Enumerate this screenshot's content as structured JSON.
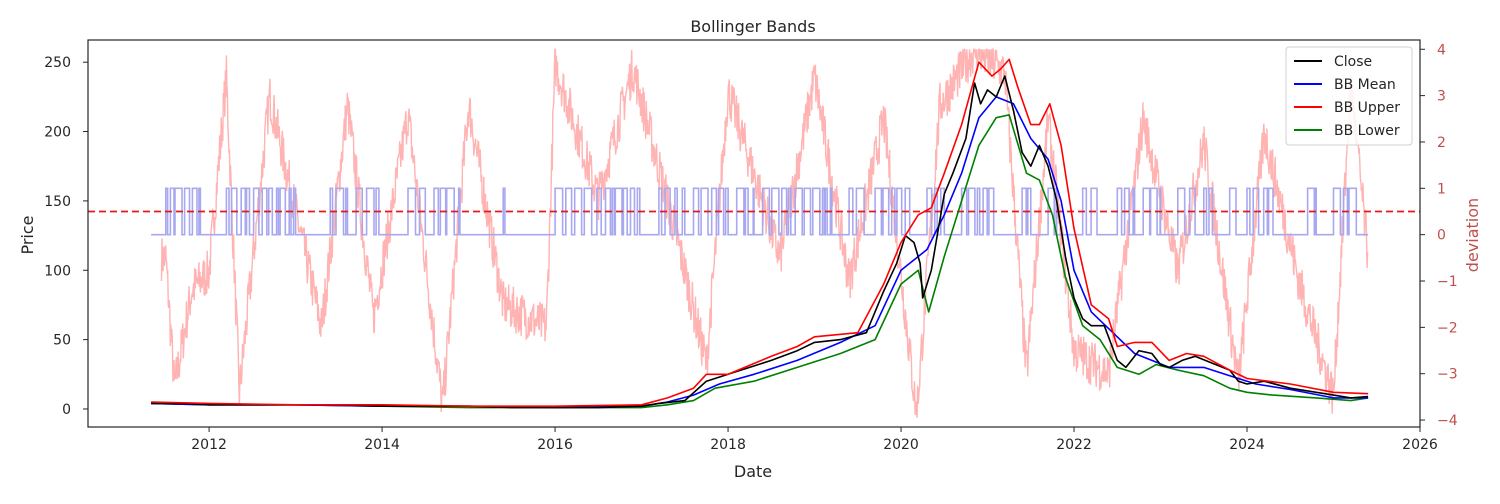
{
  "chart_data": {
    "type": "line",
    "title": "Bollinger Bands",
    "xlabel": "Date",
    "ylabel": "Price",
    "y2label": "deviation",
    "xlim": [
      2010.6,
      2026.0
    ],
    "ylim": [
      -13,
      266
    ],
    "y2lim": [
      -4.15,
      4.2
    ],
    "x_ticks": [
      "2012",
      "2014",
      "2016",
      "2018",
      "2020",
      "2022",
      "2024",
      "2026"
    ],
    "y_ticks": [
      "0",
      "50",
      "100",
      "150",
      "200",
      "250"
    ],
    "y2_ticks": [
      "−4",
      "−3",
      "−2",
      "−1",
      "0",
      "1",
      "2",
      "3",
      "4"
    ],
    "threshold": {
      "value": 0.5,
      "color": "#e41a1c",
      "style": "dashed"
    },
    "legend": {
      "position": "top-right",
      "entries": [
        "Close",
        "BB Mean",
        "BB Upper",
        "BB Lower"
      ]
    },
    "colors": {
      "close": "#000000",
      "bb_mean": "#0000ff",
      "bb_upper": "#ff0000",
      "bb_lower": "#008000",
      "deviation": "#ffb3b3",
      "signal": "#a8a8f0",
      "threshold": "#e41a1c",
      "y2_tick": "#c0504d"
    },
    "series": [
      {
        "name": "Close",
        "axis": "left",
        "x": [
          2011.33,
          2011.7,
          2012.0,
          2012.5,
          2013.0,
          2013.5,
          2014.0,
          2014.5,
          2015.0,
          2015.5,
          2016.0,
          2016.5,
          2017.0,
          2017.2,
          2017.5,
          2017.75,
          2018.0,
          2018.5,
          2018.8,
          2019.0,
          2019.3,
          2019.6,
          2019.8,
          2019.95,
          2020.05,
          2020.15,
          2020.22,
          2020.25,
          2020.35,
          2020.5,
          2020.6,
          2020.75,
          2020.85,
          2020.92,
          2021.0,
          2021.1,
          2021.2,
          2021.3,
          2021.4,
          2021.5,
          2021.6,
          2021.7,
          2021.8,
          2021.9,
          2022.0,
          2022.1,
          2022.2,
          2022.35,
          2022.5,
          2022.6,
          2022.75,
          2022.9,
          2023.0,
          2023.1,
          2023.25,
          2023.4,
          2023.6,
          2023.8,
          2023.9,
          2024.0,
          2024.2,
          2024.5,
          2024.8,
          2025.0,
          2025.2,
          2025.4
        ],
        "y": [
          4,
          4,
          3,
          3,
          3,
          3,
          2,
          2,
          2,
          1,
          1,
          1,
          2,
          4,
          6,
          20,
          25,
          35,
          42,
          48,
          50,
          55,
          85,
          105,
          125,
          120,
          105,
          80,
          100,
          155,
          170,
          195,
          235,
          220,
          230,
          225,
          240,
          215,
          185,
          175,
          190,
          175,
          150,
          110,
          80,
          65,
          60,
          60,
          35,
          30,
          42,
          40,
          32,
          30,
          35,
          38,
          33,
          28,
          20,
          18,
          20,
          15,
          12,
          10,
          8,
          9
        ]
      },
      {
        "name": "BB Mean",
        "axis": "left",
        "x": [
          2011.33,
          2012.0,
          2013.0,
          2014.0,
          2015.0,
          2016.0,
          2017.0,
          2017.3,
          2017.6,
          2017.9,
          2018.3,
          2018.8,
          2019.3,
          2019.7,
          2020.0,
          2020.3,
          2020.5,
          2020.7,
          2020.9,
          2021.1,
          2021.3,
          2021.5,
          2021.7,
          2021.85,
          2022.0,
          2022.2,
          2022.45,
          2022.7,
          2022.9,
          2023.1,
          2023.5,
          2023.8,
          2024.1,
          2024.5,
          2025.0,
          2025.4
        ],
        "y": [
          4,
          3,
          3,
          2,
          2,
          1,
          2,
          5,
          10,
          18,
          25,
          35,
          48,
          60,
          100,
          115,
          140,
          170,
          210,
          225,
          220,
          195,
          180,
          150,
          100,
          70,
          55,
          40,
          35,
          30,
          30,
          24,
          18,
          14,
          8,
          8
        ]
      },
      {
        "name": "BB Upper",
        "axis": "left",
        "x": [
          2011.33,
          2012.0,
          2013.0,
          2014.0,
          2015.0,
          2016.0,
          2017.0,
          2017.3,
          2017.6,
          2017.75,
          2018.0,
          2018.5,
          2018.8,
          2019.0,
          2019.5,
          2019.8,
          2020.0,
          2020.2,
          2020.35,
          2020.5,
          2020.7,
          2020.9,
          2021.05,
          2021.15,
          2021.25,
          2021.35,
          2021.5,
          2021.6,
          2021.72,
          2021.85,
          2022.0,
          2022.2,
          2022.4,
          2022.5,
          2022.7,
          2022.9,
          2023.1,
          2023.3,
          2023.5,
          2023.8,
          2024.0,
          2024.5,
          2025.0,
          2025.4
        ],
        "y": [
          5,
          4,
          3,
          3,
          2,
          2,
          3,
          8,
          15,
          25,
          25,
          38,
          45,
          52,
          55,
          90,
          120,
          140,
          145,
          170,
          205,
          250,
          240,
          245,
          252,
          232,
          205,
          205,
          220,
          190,
          130,
          75,
          65,
          45,
          48,
          48,
          35,
          40,
          38,
          28,
          22,
          18,
          12,
          11
        ]
      },
      {
        "name": "BB Lower",
        "axis": "left",
        "x": [
          2011.33,
          2012.0,
          2013.0,
          2014.0,
          2015.0,
          2016.0,
          2017.0,
          2017.3,
          2017.6,
          2017.85,
          2018.3,
          2018.8,
          2019.3,
          2019.7,
          2020.0,
          2020.2,
          2020.32,
          2020.5,
          2020.7,
          2020.9,
          2021.1,
          2021.25,
          2021.45,
          2021.6,
          2021.75,
          2021.9,
          2022.1,
          2022.3,
          2022.5,
          2022.75,
          2022.95,
          2023.2,
          2023.5,
          2023.8,
          2024.0,
          2024.3,
          2024.8,
          2025.2,
          2025.4
        ],
        "y": [
          4,
          3,
          3,
          2,
          1,
          1,
          1,
          3,
          6,
          15,
          20,
          30,
          40,
          50,
          90,
          100,
          70,
          110,
          150,
          190,
          210,
          212,
          170,
          165,
          140,
          95,
          60,
          50,
          30,
          25,
          32,
          28,
          24,
          15,
          12,
          10,
          8,
          6,
          8
        ]
      }
    ],
    "deviation_series": {
      "name": "deviation",
      "axis": "right",
      "range": [
        2011.45,
        2025.4
      ],
      "keypoints": [
        {
          "x": 2011.5,
          "y": -0.5
        },
        {
          "x": 2011.6,
          "y": -3.3
        },
        {
          "x": 2011.8,
          "y": -1.2
        },
        {
          "x": 2012.0,
          "y": -0.8
        },
        {
          "x": 2012.2,
          "y": 3.4
        },
        {
          "x": 2012.35,
          "y": -3.4
        },
        {
          "x": 2012.7,
          "y": 3.0
        },
        {
          "x": 2013.0,
          "y": 0.5
        },
        {
          "x": 2013.3,
          "y": -2.0
        },
        {
          "x": 2013.6,
          "y": 2.8
        },
        {
          "x": 2013.9,
          "y": -1.8
        },
        {
          "x": 2014.3,
          "y": 2.6
        },
        {
          "x": 2014.7,
          "y": -3.7
        },
        {
          "x": 2015.0,
          "y": 2.8
        },
        {
          "x": 2015.4,
          "y": -1.5
        },
        {
          "x": 2015.9,
          "y": -2.0
        },
        {
          "x": 2016.0,
          "y": 3.7
        },
        {
          "x": 2016.5,
          "y": 0.8
        },
        {
          "x": 2016.9,
          "y": 3.6
        },
        {
          "x": 2017.4,
          "y": 0.0
        },
        {
          "x": 2017.75,
          "y": -2.8
        },
        {
          "x": 2018.0,
          "y": 3.1
        },
        {
          "x": 2018.6,
          "y": -0.5
        },
        {
          "x": 2019.0,
          "y": 3.4
        },
        {
          "x": 2019.4,
          "y": -1.0
        },
        {
          "x": 2019.8,
          "y": 2.5
        },
        {
          "x": 2020.18,
          "y": -3.9
        },
        {
          "x": 2020.45,
          "y": 2.8
        },
        {
          "x": 2020.85,
          "y": 4.0
        },
        {
          "x": 2021.2,
          "y": 3.5
        },
        {
          "x": 2021.45,
          "y": -3.0
        },
        {
          "x": 2021.7,
          "y": 2.5
        },
        {
          "x": 2022.0,
          "y": -2.5
        },
        {
          "x": 2022.4,
          "y": -3.0
        },
        {
          "x": 2022.8,
          "y": 2.5
        },
        {
          "x": 2023.2,
          "y": -0.8
        },
        {
          "x": 2023.5,
          "y": 2.0
        },
        {
          "x": 2023.9,
          "y": -3.2
        },
        {
          "x": 2024.2,
          "y": 2.2
        },
        {
          "x": 2024.6,
          "y": -1.0
        },
        {
          "x": 2025.0,
          "y": -3.5
        },
        {
          "x": 2025.2,
          "y": 3.3
        },
        {
          "x": 2025.4,
          "y": -0.5
        }
      ]
    },
    "signal_series": {
      "name": "signal",
      "axis": "right",
      "levels": [
        0,
        1
      ],
      "range": [
        2011.33,
        2025.4
      ],
      "active_intervals": [
        [
          2011.5,
          2011.9
        ],
        [
          2012.2,
          2013.0
        ],
        [
          2013.4,
          2013.6
        ],
        [
          2013.7,
          2014.0
        ],
        [
          2014.3,
          2014.5
        ],
        [
          2014.6,
          2014.9
        ],
        [
          2015.4,
          2015.45
        ],
        [
          2016.0,
          2017.0
        ],
        [
          2017.2,
          2017.5
        ],
        [
          2017.6,
          2018.0
        ],
        [
          2018.1,
          2018.3
        ],
        [
          2018.4,
          2019.2
        ],
        [
          2019.4,
          2019.6
        ],
        [
          2019.7,
          2020.1
        ],
        [
          2020.3,
          2020.5
        ],
        [
          2020.7,
          2021.1
        ],
        [
          2021.4,
          2021.5
        ],
        [
          2021.7,
          2021.8
        ],
        [
          2022.1,
          2022.3
        ],
        [
          2022.5,
          2022.7
        ],
        [
          2022.8,
          2023.0
        ],
        [
          2023.2,
          2023.4
        ],
        [
          2023.5,
          2023.6
        ],
        [
          2023.8,
          2023.9
        ],
        [
          2024.0,
          2024.3
        ],
        [
          2024.7,
          2024.8
        ],
        [
          2025.0,
          2025.3
        ]
      ]
    }
  }
}
